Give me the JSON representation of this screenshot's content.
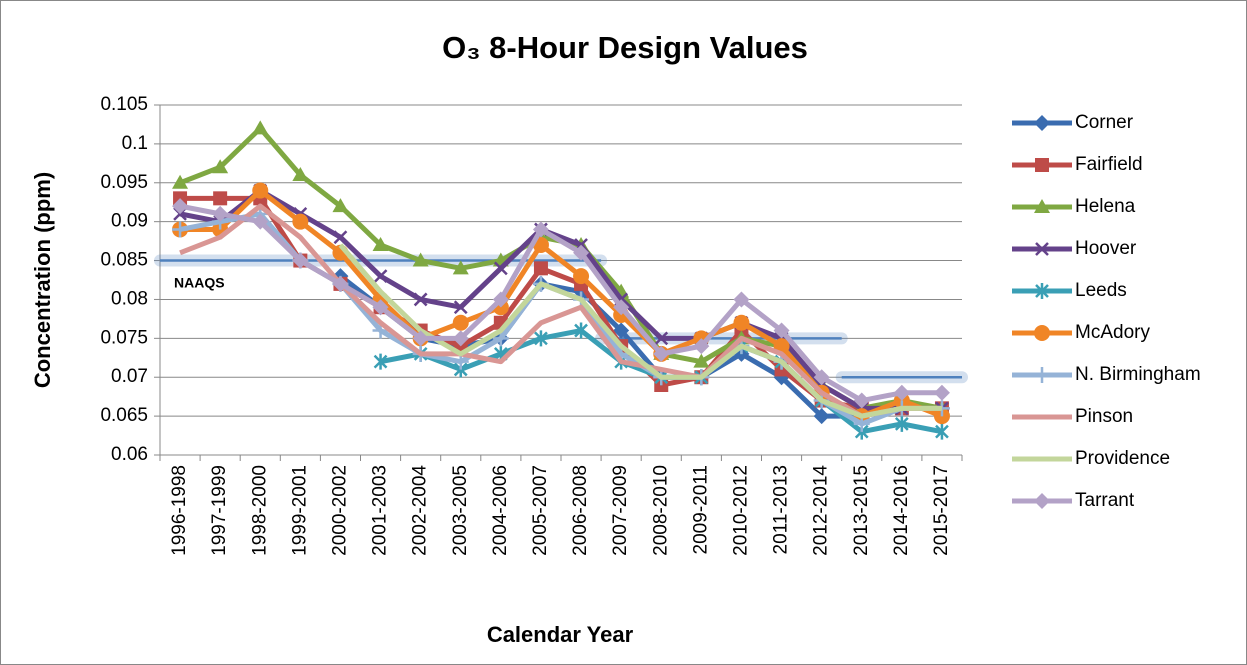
{
  "chart_data": {
    "type": "line",
    "title": "O₃ 8-Hour Design Values",
    "x_label": "Calendar Year",
    "y_label": "Concentration (ppm)",
    "categories": [
      "1996-1998",
      "1997-1999",
      "1998-2000",
      "1999-2001",
      "2000-2002",
      "2001-2003",
      "2002-2004",
      "2003-2005",
      "2004-2006",
      "2005-2007",
      "2006-2008",
      "2007-2009",
      "2008-2010",
      "2009-2011",
      "2010-2012",
      "2011-2013",
      "2012-2014",
      "2013-2015",
      "2014-2016",
      "2015-2017"
    ],
    "ylim": [
      0.06,
      0.105
    ],
    "yticks": [
      0.06,
      0.065,
      0.07,
      0.075,
      0.08,
      0.085,
      0.09,
      0.095,
      0.1,
      0.105
    ],
    "grid": true,
    "legend": "right",
    "series": [
      {
        "name": "Corner",
        "color": "#3a6cb0",
        "marker": "diamond",
        "values": [
          null,
          null,
          null,
          null,
          0.083,
          0.079,
          0.075,
          0.074,
          0.075,
          0.082,
          0.081,
          0.076,
          0.07,
          0.07,
          0.073,
          0.07,
          0.065,
          0.065,
          0.066,
          0.066
        ]
      },
      {
        "name": "Fairfield",
        "color": "#be4b48",
        "marker": "square",
        "values": [
          0.093,
          0.093,
          0.093,
          0.085,
          0.082,
          0.079,
          0.076,
          0.074,
          0.077,
          0.084,
          0.082,
          0.074,
          0.069,
          0.07,
          0.076,
          0.071,
          0.067,
          0.066,
          0.066,
          0.066
        ]
      },
      {
        "name": "Helena",
        "color": "#7fa842",
        "marker": "triangle",
        "values": [
          0.095,
          0.097,
          0.102,
          0.096,
          0.092,
          0.087,
          0.085,
          0.084,
          0.085,
          0.088,
          0.087,
          0.081,
          0.073,
          0.072,
          0.075,
          0.074,
          0.069,
          0.066,
          0.067,
          0.066
        ]
      },
      {
        "name": "Hoover",
        "color": "#64428a",
        "marker": "x",
        "values": [
          0.091,
          0.09,
          0.094,
          0.091,
          0.088,
          0.083,
          0.08,
          0.079,
          0.084,
          0.089,
          0.087,
          0.08,
          0.075,
          0.075,
          0.077,
          0.075,
          0.069,
          0.066,
          0.066,
          0.066
        ]
      },
      {
        "name": "Leeds",
        "color": "#3a9fb5",
        "marker": "asterisk",
        "values": [
          null,
          null,
          null,
          null,
          null,
          0.072,
          0.073,
          0.071,
          0.073,
          0.075,
          0.076,
          0.072,
          0.07,
          0.07,
          0.074,
          0.072,
          0.067,
          0.063,
          0.064,
          0.063
        ]
      },
      {
        "name": "McAdory",
        "color": "#f08526",
        "marker": "circle",
        "values": [
          0.089,
          0.089,
          0.094,
          0.09,
          0.086,
          0.08,
          0.075,
          0.077,
          0.079,
          0.087,
          0.083,
          0.078,
          0.073,
          0.075,
          0.077,
          0.074,
          0.068,
          0.065,
          0.067,
          0.065
        ]
      },
      {
        "name": "N. Birmingham",
        "color": "#95b3d7",
        "marker": "plus",
        "values": [
          0.089,
          0.09,
          0.091,
          0.085,
          0.082,
          0.076,
          0.073,
          0.072,
          0.075,
          0.082,
          0.08,
          0.073,
          0.07,
          0.07,
          0.074,
          0.072,
          0.067,
          0.064,
          0.066,
          0.066
        ]
      },
      {
        "name": "Pinson",
        "color": "#d99694",
        "marker": "none",
        "values": [
          0.086,
          0.088,
          0.092,
          0.088,
          0.082,
          0.077,
          0.073,
          0.073,
          0.072,
          0.077,
          0.079,
          0.072,
          0.071,
          0.07,
          0.075,
          0.073,
          0.068,
          0.065,
          0.066,
          0.066
        ]
      },
      {
        "name": "Providence",
        "color": "#c3d69b",
        "marker": "none",
        "values": [
          null,
          null,
          null,
          null,
          0.087,
          0.081,
          0.076,
          0.073,
          0.076,
          0.082,
          0.08,
          0.074,
          0.07,
          0.07,
          0.074,
          0.072,
          0.067,
          0.065,
          0.066,
          0.066
        ]
      },
      {
        "name": "Tarrant",
        "color": "#b3a2c7",
        "marker": "diamond",
        "values": [
          0.092,
          0.091,
          0.09,
          0.085,
          0.082,
          0.079,
          0.075,
          0.075,
          0.08,
          0.089,
          0.086,
          0.079,
          0.073,
          0.074,
          0.08,
          0.076,
          0.07,
          0.067,
          0.068,
          0.068
        ]
      }
    ],
    "reference": {
      "label": "NAAQS",
      "color": "#4f81bd",
      "segments": [
        {
          "value": 0.085,
          "from": "1996-1998",
          "to": "2006-2008"
        },
        {
          "value": 0.075,
          "from": "2007-2009",
          "to": "2012-2014"
        },
        {
          "value": 0.07,
          "from": "2013-2015",
          "to": "2015-2017"
        }
      ]
    }
  }
}
